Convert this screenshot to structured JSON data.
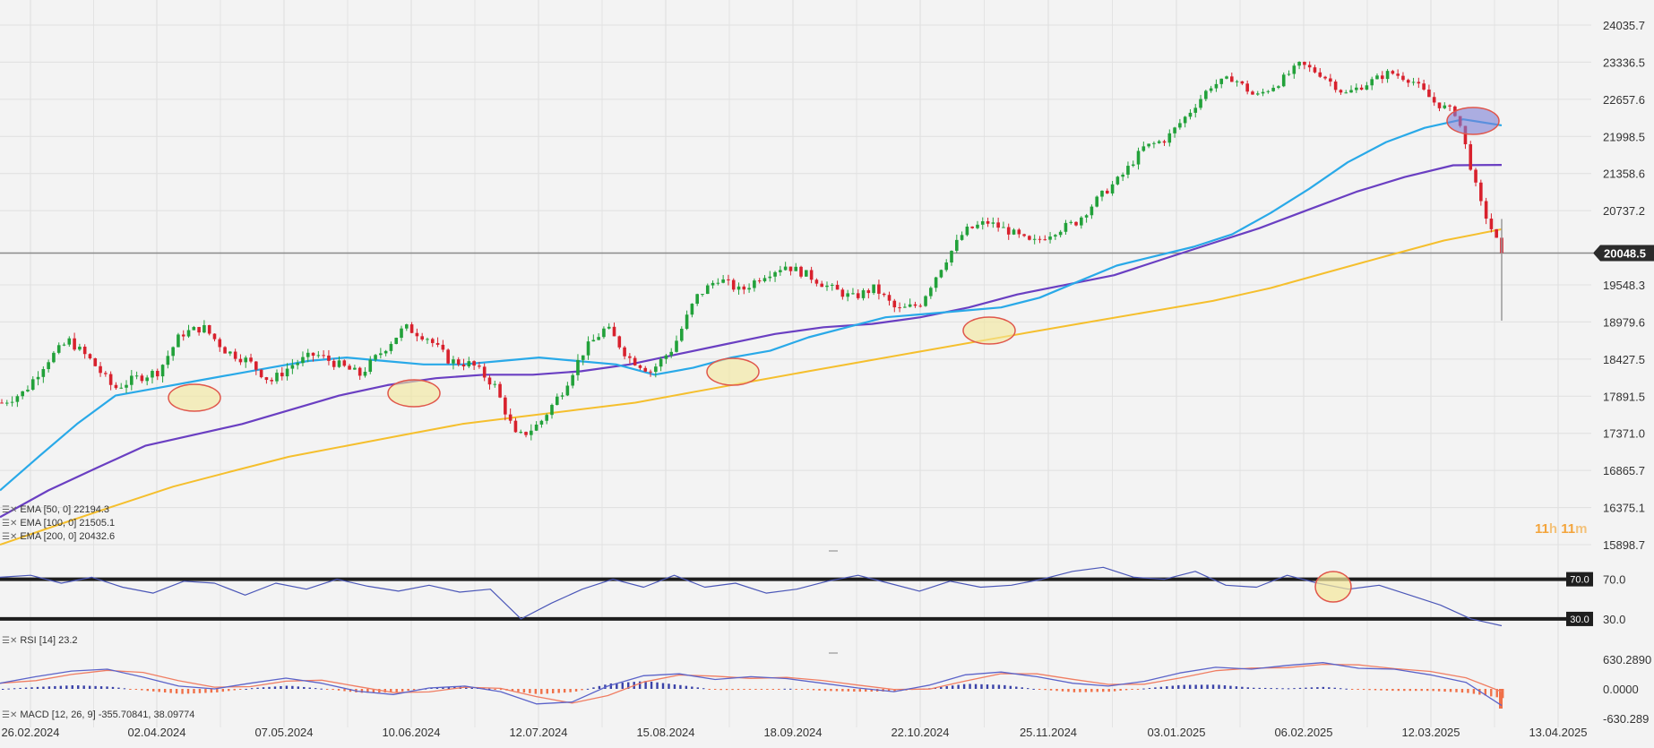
{
  "price_axis": [
    "24035.7",
    "23336.5",
    "22657.6",
    "21998.5",
    "21358.6",
    "20737.2",
    "19548.3",
    "18979.6",
    "18427.5",
    "17891.5",
    "17371.0",
    "16865.7",
    "16375.1",
    "15898.7"
  ],
  "rsi_axis": [
    "70.0",
    "30.0"
  ],
  "macd_axis": [
    "630.2890",
    "0.0000",
    "-630.289"
  ],
  "x_axis_dates": [
    "26.02.2024",
    "02.04.2024",
    "07.05.2024",
    "10.06.2024",
    "12.07.2024",
    "15.08.2024",
    "18.09.2024",
    "22.10.2024",
    "25.11.2024",
    "03.01.2025",
    "06.02.2025",
    "12.03.2025",
    "13.04.2025"
  ],
  "current_price_label": "20048.5",
  "rsi_levels": {
    "upper": "70.0",
    "lower": "30.0"
  },
  "indicators": {
    "ema50": "EMA [50, 0] 22194.3",
    "ema100": "EMA [100, 0] 21505.1",
    "ema200": "EMA [200, 0] 20432.6",
    "rsi": "RSI [14] 23.2",
    "macd": "MACD [12, 26, 9] -355.70841, 38.09774"
  },
  "countdown": {
    "h_val": "11",
    "h_unit": "h",
    "m_val": "11",
    "m_unit": "m"
  },
  "colors": {
    "ema50": "#29a9e8",
    "ema100": "#6a3fc2",
    "ema200": "#f5bf2d",
    "up": "#22a13a",
    "down": "#d8212d",
    "rsi": "#4b57b8",
    "macd": "#5b63c9",
    "signal": "#f07d62",
    "hist_pos": "#3a42a8",
    "hist_neg": "#f07048",
    "highlight": "#f3e79a"
  },
  "chart_data": [
    {
      "type": "candlestick",
      "ylim": [
        15898.7,
        24035.7
      ],
      "x_range": [
        "26.02.2024",
        "13.04.2025"
      ],
      "current_price": 20048.5,
      "close_path": [
        17800,
        17950,
        18400,
        18700,
        18400,
        18000,
        18150,
        18250,
        18800,
        18900,
        18550,
        18400,
        18100,
        18350,
        18500,
        18350,
        18200,
        18550,
        18900,
        18750,
        18400,
        18350,
        18050,
        17300,
        17500,
        17950,
        18550,
        18900,
        18450,
        18250,
        18600,
        19350,
        19650,
        19450,
        19700,
        19850,
        19700,
        19500,
        19350,
        19500,
        19150,
        19250,
        19850,
        20400,
        20550,
        20400,
        20200,
        20400,
        20550,
        20950,
        21300,
        21800,
        21950,
        22400,
        22900,
        23050,
        22700,
        22950,
        23300,
        23100,
        22750,
        22950,
        23150,
        23000,
        22600,
        22400,
        20900,
        20048.5
      ],
      "series": [
        {
          "name": "EMA [50, 0]",
          "values": [
            16600,
            17050,
            17500,
            17900,
            18000,
            18100,
            18200,
            18300,
            18400,
            18450,
            18400,
            18350,
            18350,
            18400,
            18450,
            18400,
            18350,
            18200,
            18300,
            18450,
            18550,
            18750,
            18900,
            19050,
            19100,
            19150,
            19200,
            19350,
            19600,
            19850,
            20000,
            20150,
            20350,
            20700,
            21100,
            21550,
            21900,
            22150,
            22300,
            22194.3
          ]
        },
        {
          "name": "EMA [100, 0]",
          "values": [
            16250,
            16600,
            16900,
            17200,
            17350,
            17500,
            17700,
            17900,
            18050,
            18150,
            18200,
            18200,
            18250,
            18350,
            18500,
            18650,
            18800,
            18900,
            18950,
            19050,
            19200,
            19400,
            19550,
            19700,
            19950,
            20200,
            20450,
            20750,
            21050,
            21300,
            21500,
            21505.1
          ]
        },
        {
          "name": "EMA [200, 0]",
          "values": [
            15898.7,
            16150,
            16400,
            16650,
            16850,
            17050,
            17200,
            17350,
            17500,
            17600,
            17700,
            17800,
            17950,
            18100,
            18250,
            18400,
            18550,
            18700,
            18850,
            19000,
            19150,
            19300,
            19500,
            19750,
            20000,
            20250,
            20432.6
          ]
        },
        {
          "name": "RSI [14]",
          "values": [
            72,
            74,
            66,
            72,
            62,
            56,
            68,
            66,
            54,
            66,
            60,
            70,
            63,
            58,
            64,
            57,
            60,
            30,
            46,
            60,
            70,
            62,
            74,
            62,
            66,
            56,
            60,
            68,
            74,
            66,
            58,
            68,
            62,
            64,
            70,
            78,
            82,
            72,
            70,
            78,
            64,
            62,
            74,
            66,
            60,
            64,
            54,
            44,
            30,
            23.2
          ]
        },
        {
          "name": "MACD [12, 26, 9]",
          "values": [
            120,
            260,
            380,
            420,
            250,
            60,
            0,
            120,
            230,
            120,
            -50,
            -120,
            20,
            60,
            -60,
            -320,
            -280,
            60,
            280,
            320,
            200,
            260,
            220,
            120,
            20,
            -60,
            80,
            300,
            360,
            260,
            120,
            60,
            160,
            340,
            460,
            420,
            500,
            560,
            440,
            420,
            300,
            140,
            -355.7
          ]
        }
      ]
    }
  ]
}
